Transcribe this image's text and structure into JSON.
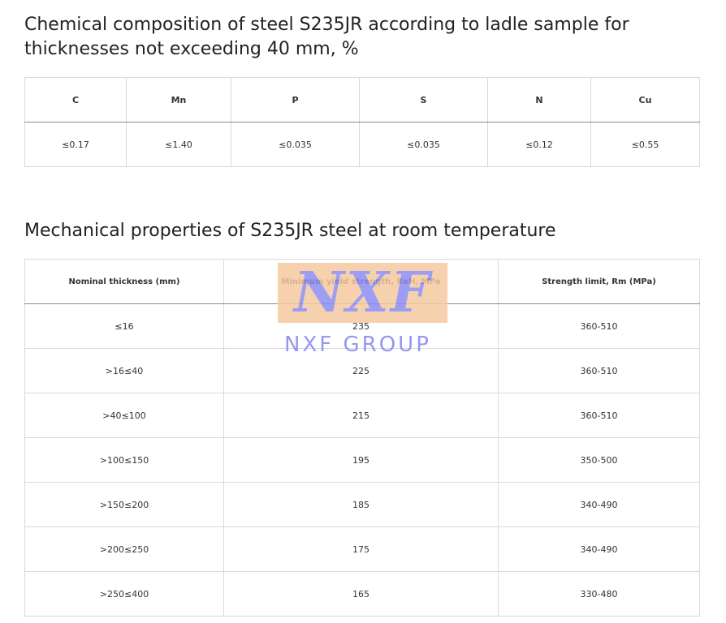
{
  "section1": {
    "title": "Chemical composition of steel S235JR according to ladle sample for thicknesses not exceeding 40 mm, %",
    "headers": [
      "C",
      "Mn",
      "P",
      "S",
      "N",
      "Cu"
    ],
    "values": [
      "≤0.17",
      "≤1.40",
      "≤0.035",
      "≤0.035",
      "≤0.12",
      "≤0.55"
    ]
  },
  "section2": {
    "title": "Mechanical properties of S235JR steel at room temperature",
    "headers": [
      "Nominal thickness (mm)",
      "Minimum yield strength, ReH, MPa",
      "Strength limit, Rm (MPa)"
    ],
    "rows": [
      [
        "≤16",
        "235",
        "360-510"
      ],
      [
        ">16≤40",
        "225",
        "360-510"
      ],
      [
        ">40≤100",
        "215",
        "360-510"
      ],
      [
        ">100≤150",
        "195",
        "350-500"
      ],
      [
        ">150≤200",
        "185",
        "340-490"
      ],
      [
        ">200≤250",
        "175",
        "340-490"
      ],
      [
        ">250≤400",
        "165",
        "330-480"
      ]
    ]
  },
  "watermark": {
    "logo": "NXF",
    "text": "NXF GROUP",
    "logo_bg": "#f5c9a0",
    "logo_color": "#8c8cf2"
  }
}
